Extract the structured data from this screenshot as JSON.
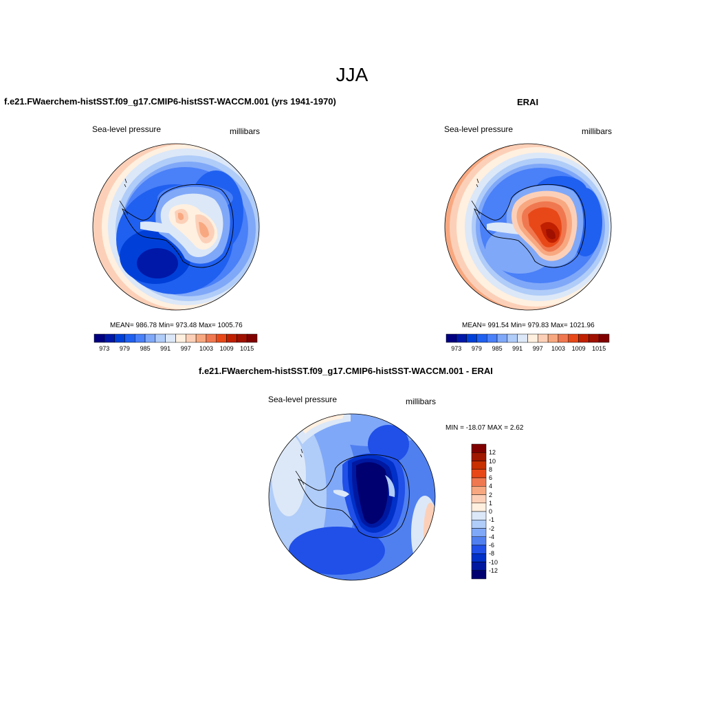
{
  "season": "JJA",
  "panels": {
    "model": {
      "title": "f.e21.FWaerchem-histSST.f09_g17.CMIP6-histSST-WACCM.001 (yrs 1941-1970)",
      "left_label": "Sea-level pressure",
      "right_label": "millibars",
      "stats": "MEAN= 986.78  Min= 973.48  Max= 1005.76"
    },
    "obs": {
      "title": "ERAI",
      "left_label": "Sea-level pressure",
      "right_label": "millibars",
      "stats": "MEAN= 991.54  Min= 979.83  Max= 1021.96"
    },
    "diff": {
      "title": "f.e21.FWaerchem-histSST.f09_g17.CMIP6-histSST-WACCM.001 - ERAI",
      "left_label": "Sea-level pressure",
      "right_label": "millibars",
      "stats": "MIN = -18.07 MAX =   2.62"
    }
  },
  "abs_colorbar": {
    "colors": [
      "#000080",
      "#0018a8",
      "#0040d8",
      "#2060f0",
      "#4a80f8",
      "#80a8f8",
      "#b0ccf8",
      "#dce8f8",
      "#fff0e0",
      "#fcd0b8",
      "#f8a880",
      "#f07850",
      "#e84818",
      "#c02000",
      "#a01000",
      "#800000"
    ],
    "tick_labels": [
      "973",
      "979",
      "985",
      "991",
      "997",
      "1003",
      "1009",
      "1015"
    ]
  },
  "diff_colorbar": {
    "colors": [
      "#800000",
      "#a01800",
      "#c83000",
      "#e84818",
      "#f07850",
      "#f8a880",
      "#fcd0b8",
      "#fff0e0",
      "#dce8f8",
      "#b0ccf8",
      "#80a8f8",
      "#5080f0",
      "#2050e8",
      "#0030c8",
      "#0018a0",
      "#000070"
    ],
    "tick_labels": [
      "12",
      "10",
      "8",
      "6",
      "4",
      "2",
      "1",
      "0",
      "-1",
      "-2",
      "-4",
      "-6",
      "-8",
      "-10",
      "-12"
    ]
  }
}
